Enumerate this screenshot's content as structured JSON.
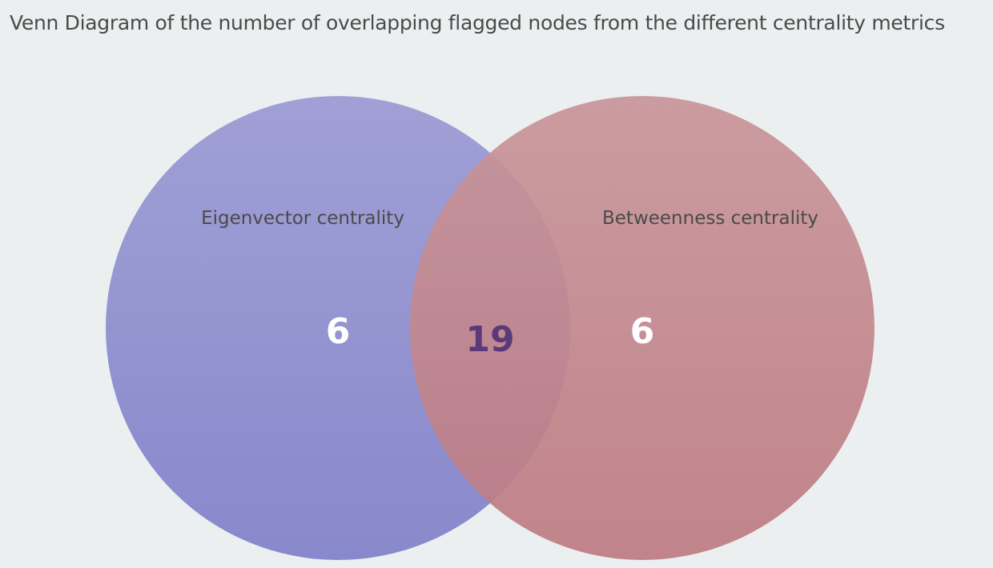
{
  "title": "Venn Diagram of the number of overlapping flagged nodes from the different centrality metrics",
  "sets": [
    {
      "name": "Eigenvector centrality",
      "only": "6",
      "color_top": "#a0a0d6",
      "color_bottom": "#8888cc"
    },
    {
      "name": "Betweenness centrality",
      "only": "6",
      "color_top": "#c89499",
      "color_bottom": "#bd7b82"
    }
  ],
  "intersection": "19",
  "colors": {
    "background": "#ebeff0",
    "intersection_text": "#5a3a7a"
  }
}
